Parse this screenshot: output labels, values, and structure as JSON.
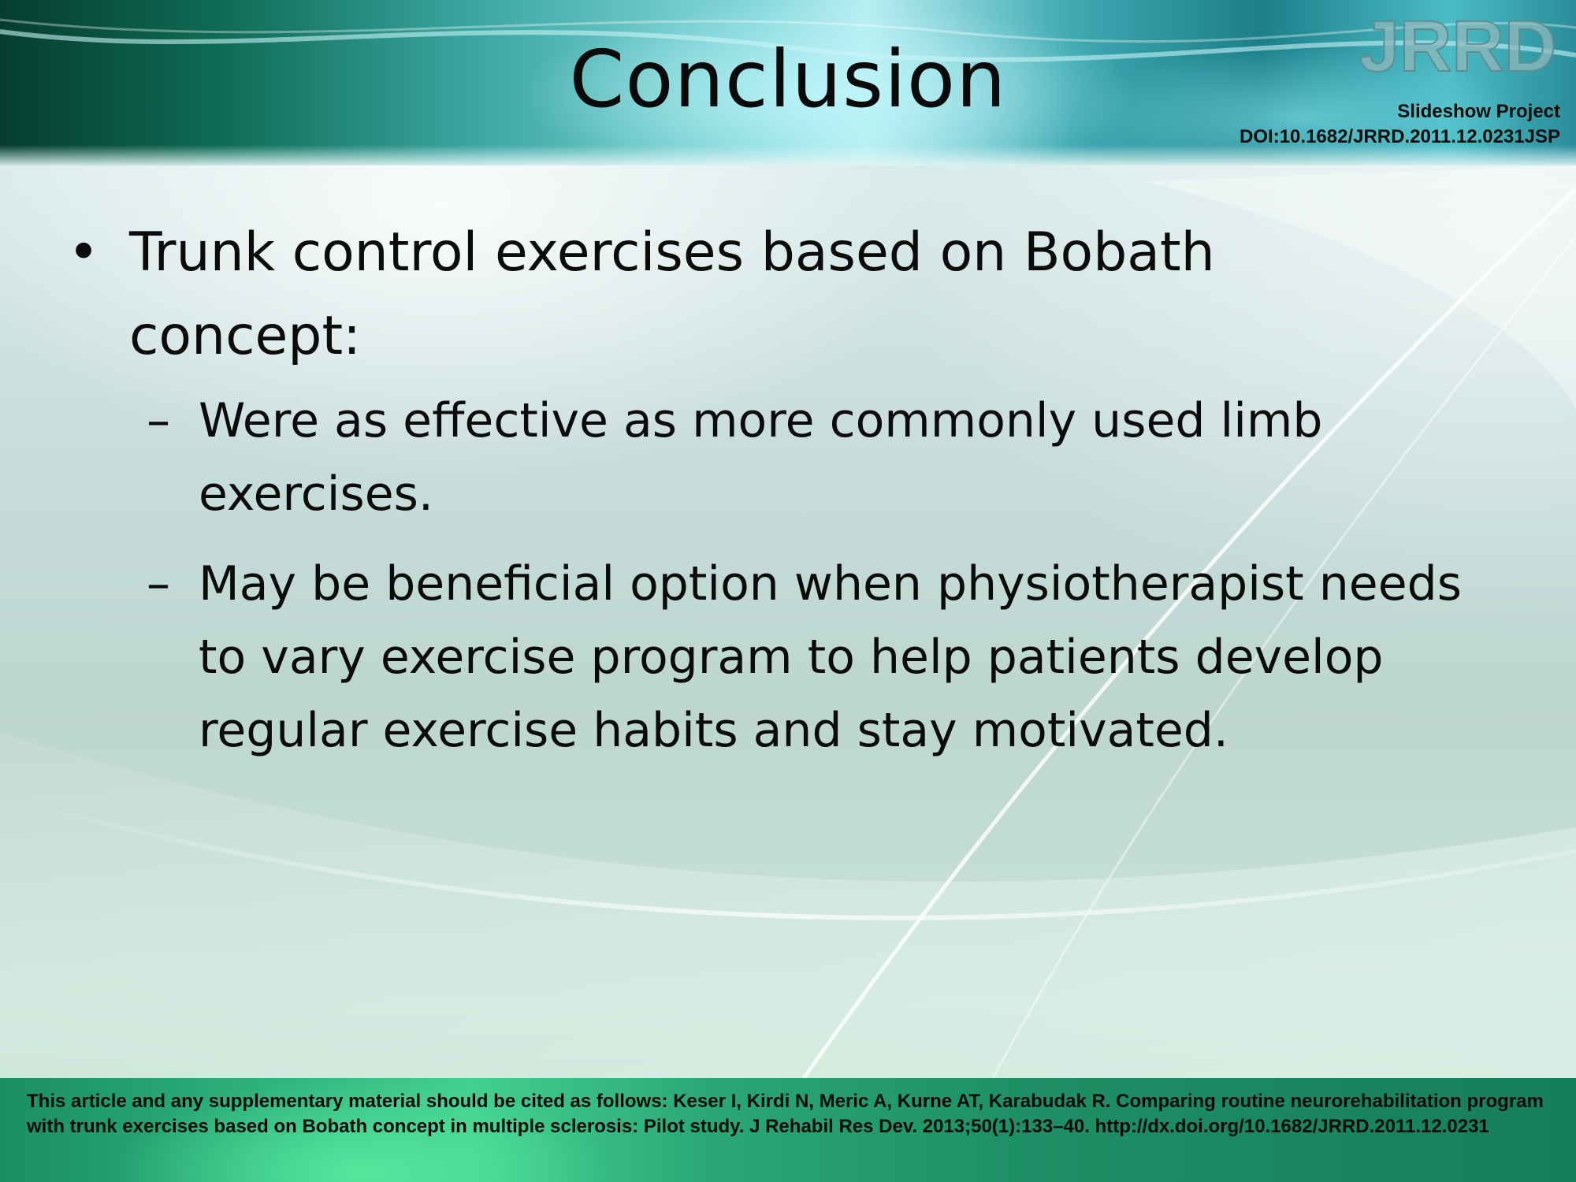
{
  "slide": {
    "title": "Conclusion",
    "logo_text": "JRRD",
    "project_label": "Slideshow Project",
    "doi": "DOI:10.1682/JRRD.2011.12.0231JSP",
    "bullet": {
      "marker": "•",
      "text": "Trunk control exercises based on Bobath concept:"
    },
    "sub_bullets": [
      {
        "marker": "–",
        "text": "Were as effective as more commonly used limb exercises."
      },
      {
        "marker": "–",
        "text": "May be beneficial option when physiotherapist needs to vary exercise program to help patients develop regular exercise habits and stay motivated."
      }
    ],
    "citation": "This article and any supplementary material should be cited as follows: Keser I, Kirdi N, Meric A, Kurne AT, Karabudak R. Comparing routine neurorehabilitation program with trunk exercises based on Bobath concept in multiple sclerosis: Pilot study. J Rehabil Res Dev. 2013;50(1):133–40. http://dx.doi.org/10.1682/JRRD.2011.12.0231"
  },
  "colors": {
    "header_dark": "#063d2e",
    "header_teal": "#3aa6a2",
    "footer_green": "#2fb57f",
    "text": "#0b0b0b"
  }
}
